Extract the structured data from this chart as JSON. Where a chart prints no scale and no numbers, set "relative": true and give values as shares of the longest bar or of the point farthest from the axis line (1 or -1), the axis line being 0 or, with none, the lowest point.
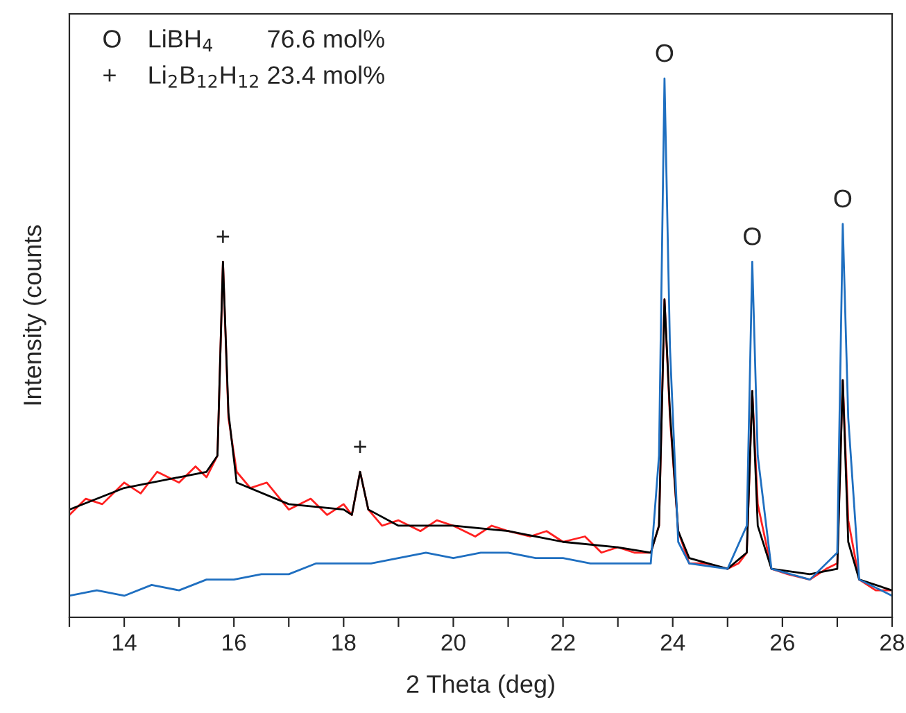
{
  "chart_data": {
    "type": "line",
    "relative": true,
    "xlabel": "2 Theta (deg)",
    "ylabel": "Intensity (counts",
    "xlim": [
      13,
      28
    ],
    "xticks": [
      {
        "value": 13,
        "label": null
      },
      14,
      {
        "value": 15,
        "label": null
      },
      16,
      {
        "value": 17,
        "label": null
      },
      18,
      {
        "value": 19,
        "label": null
      },
      20,
      {
        "value": 21,
        "label": null
      },
      22,
      {
        "value": 23,
        "label": null
      },
      24,
      {
        "value": 25,
        "label": null
      },
      26,
      {
        "value": 27,
        "label": null
      },
      28
    ],
    "tick_labels": "x",
    "grid": false,
    "legend": false,
    "marker": "none",
    "line_style": "solid",
    "series": [
      {
        "color": "#ff2020",
        "x": [
          13,
          13.3,
          13.6,
          14,
          14.3,
          14.6,
          15,
          15.3,
          15.5,
          15.7,
          15.8,
          15.9,
          16.05,
          16.3,
          16.6,
          17,
          17.4,
          17.7,
          18,
          18.15,
          18.3,
          18.45,
          18.7,
          19,
          19.4,
          19.7,
          20,
          20.4,
          20.7,
          21,
          21.4,
          21.7,
          22,
          22.4,
          22.7,
          23,
          23.3,
          23.6,
          23.75,
          23.85,
          23.95,
          24.1,
          24.3,
          24.6,
          25,
          25.2,
          25.35,
          25.45,
          25.55,
          25.8,
          26.1,
          26.5,
          26.8,
          27,
          27.1,
          27.2,
          27.4,
          27.7,
          28
        ],
        "values": [
          0.19,
          0.22,
          0.21,
          0.25,
          0.23,
          0.27,
          0.25,
          0.28,
          0.26,
          0.3,
          0.66,
          0.37,
          0.27,
          0.24,
          0.25,
          0.2,
          0.22,
          0.19,
          0.21,
          0.19,
          0.27,
          0.2,
          0.17,
          0.18,
          0.16,
          0.18,
          0.17,
          0.15,
          0.17,
          0.16,
          0.15,
          0.16,
          0.14,
          0.15,
          0.12,
          0.13,
          0.12,
          0.12,
          0.17,
          0.59,
          0.37,
          0.16,
          0.1,
          0.1,
          0.09,
          0.1,
          0.12,
          0.42,
          0.21,
          0.09,
          0.08,
          0.07,
          0.09,
          0.1,
          0.44,
          0.18,
          0.07,
          0.05,
          0.05
        ]
      },
      {
        "color": "#000000",
        "x": [
          13,
          14,
          15,
          15.5,
          15.7,
          15.8,
          15.9,
          16.05,
          17,
          18,
          18.15,
          18.3,
          18.45,
          19,
          20,
          21,
          22,
          23,
          23.6,
          23.75,
          23.85,
          23.95,
          24.1,
          24.3,
          25,
          25.35,
          25.45,
          25.55,
          25.8,
          26.5,
          27,
          27.1,
          27.2,
          27.4,
          28
        ],
        "values": [
          0.2,
          0.24,
          0.26,
          0.27,
          0.3,
          0.66,
          0.38,
          0.25,
          0.21,
          0.2,
          0.19,
          0.27,
          0.2,
          0.17,
          0.17,
          0.16,
          0.14,
          0.13,
          0.12,
          0.17,
          0.59,
          0.38,
          0.16,
          0.11,
          0.09,
          0.12,
          0.42,
          0.17,
          0.09,
          0.08,
          0.09,
          0.44,
          0.14,
          0.07,
          0.05
        ]
      },
      {
        "color": "#1f6fc0",
        "x": [
          13,
          13.5,
          14,
          14.5,
          15,
          15.5,
          16,
          16.5,
          17,
          17.5,
          18,
          18.5,
          19,
          19.5,
          20,
          20.5,
          21,
          21.5,
          22,
          22.5,
          23,
          23.6,
          23.75,
          23.85,
          23.95,
          24.1,
          24.3,
          25,
          25.35,
          25.45,
          25.55,
          25.8,
          26.5,
          27,
          27.1,
          27.2,
          27.4,
          28
        ],
        "values": [
          0.04,
          0.05,
          0.04,
          0.06,
          0.05,
          0.07,
          0.07,
          0.08,
          0.08,
          0.1,
          0.1,
          0.1,
          0.11,
          0.12,
          0.11,
          0.12,
          0.12,
          0.11,
          0.11,
          0.1,
          0.1,
          0.1,
          0.3,
          1.0,
          0.5,
          0.14,
          0.1,
          0.09,
          0.17,
          0.66,
          0.3,
          0.09,
          0.07,
          0.12,
          0.73,
          0.37,
          0.07,
          0.04
        ]
      }
    ],
    "annotations": [
      {
        "text": "+",
        "x": 15.8,
        "y": 0.66
      },
      {
        "text": "+",
        "x": 18.3,
        "y": 0.27
      },
      {
        "text": "O",
        "x": 23.85,
        "y": 1.0
      },
      {
        "text": "O",
        "x": 25.45,
        "y": 0.66
      },
      {
        "text": "O",
        "x": 27.1,
        "y": 0.73
      },
      "O",
      "LiBH$_{4}$",
      "76.6 mol%",
      "+",
      "Li$_{2}$B$_{12}$H$_{12}$",
      "23.4 mol%"
    ]
  }
}
